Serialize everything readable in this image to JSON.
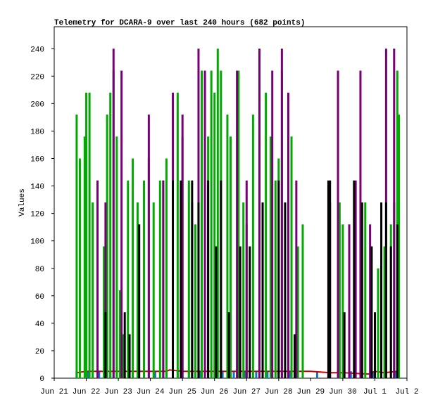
{
  "chart_data": {
    "type": "bar",
    "title": "Telemetry for DCARA-9 over last 240 hours (682 points)",
    "y_label": "Values",
    "xlim": [
      0,
      11
    ],
    "ylim": [
      0,
      256
    ],
    "xticks": [
      {
        "value": 0,
        "label": "Jun 21"
      },
      {
        "value": 1,
        "label": "Jun 22"
      },
      {
        "value": 2,
        "label": "Jun 23"
      },
      {
        "value": 3,
        "label": "Jun 24"
      },
      {
        "value": 4,
        "label": "Jun 25"
      },
      {
        "value": 5,
        "label": "Jun 26"
      },
      {
        "value": 6,
        "label": "Jun 27"
      },
      {
        "value": 7,
        "label": "Jun 28"
      },
      {
        "value": 8,
        "label": "Jun 29"
      },
      {
        "value": 9,
        "label": "Jun 30"
      },
      {
        "value": 10,
        "label": "Jul 1"
      },
      {
        "value": 11,
        "label": "Jul 2"
      }
    ],
    "yticks": [
      0,
      20,
      40,
      60,
      80,
      100,
      120,
      140,
      160,
      180,
      200,
      220,
      240
    ],
    "series": [
      {
        "color": "#1a6fd6",
        "style": "bar",
        "x": [
          0.7,
          1.05,
          1.4,
          1.75,
          2.1,
          2.45,
          2.8,
          3.15,
          3.5,
          3.85,
          4.2,
          4.55,
          4.9,
          5.25,
          5.6,
          5.95,
          6.3,
          6.65,
          7.0,
          7.35,
          8.2,
          8.55,
          8.9,
          9.25,
          9.6,
          9.95,
          10.3,
          10.65
        ],
        "values": [
          5,
          5,
          5,
          5,
          5,
          5,
          5,
          5,
          5,
          5,
          5,
          5,
          5,
          5,
          5,
          5,
          5,
          5,
          5,
          5,
          5,
          5,
          5,
          5,
          5,
          5,
          5,
          5
        ]
      },
      {
        "color": "#cc0000",
        "style": "line",
        "x": [
          0.7,
          1,
          2,
          3,
          3.5,
          3.6,
          4,
          5,
          6,
          7,
          8,
          8.6,
          9,
          9.8,
          10,
          10.3,
          10.7
        ],
        "values": [
          4,
          5,
          5,
          5,
          5,
          6,
          5,
          5,
          5,
          5,
          5,
          4,
          4,
          3,
          5,
          4,
          5
        ]
      },
      {
        "color": "#00aa00",
        "style": "bar",
        "x": [
          0.7,
          0.8,
          0.95,
          1.0,
          1.1,
          1.2,
          1.35,
          1.55,
          1.65,
          1.75,
          1.85,
          1.95,
          2.05,
          2.15,
          2.3,
          2.45,
          2.6,
          2.8,
          2.95,
          3.1,
          3.3,
          3.4,
          3.5,
          3.7,
          3.85,
          4.0,
          4.2,
          4.4,
          4.6,
          4.8,
          4.9,
          5.0,
          5.1,
          5.2,
          5.4,
          5.5,
          5.75,
          5.9,
          6.0,
          6.2,
          6.4,
          6.6,
          6.75,
          6.9,
          7.0,
          7.1,
          7.3,
          7.4,
          7.6,
          7.75,
          8.9,
          9.0,
          9.6,
          9.7,
          10.1,
          10.3,
          10.5,
          10.6,
          10.7,
          10.75
        ],
        "values": [
          192,
          160,
          176,
          208,
          208,
          128,
          144,
          96,
          192,
          208,
          224,
          176,
          64,
          32,
          144,
          160,
          128,
          144,
          160,
          128,
          144,
          144,
          160,
          144,
          208,
          176,
          144,
          112,
          224,
          176,
          224,
          208,
          240,
          224,
          192,
          176,
          224,
          128,
          112,
          192,
          176,
          208,
          176,
          144,
          160,
          224,
          192,
          176,
          96,
          112,
          128,
          112,
          128,
          128,
          80,
          96,
          112,
          128,
          224,
          192
        ]
      },
      {
        "color": "#770077",
        "style": "bar",
        "x": [
          1.35,
          1.6,
          1.85,
          2.1,
          2.95,
          3.4,
          3.7,
          4.0,
          4.3,
          4.5,
          4.7,
          5.7,
          6.0,
          6.4,
          6.8,
          7.1,
          7.3,
          7.55,
          8.6,
          8.85,
          9.2,
          9.4,
          9.55,
          9.85,
          10.35,
          10.6
        ],
        "values": [
          144,
          128,
          240,
          224,
          192,
          144,
          208,
          192,
          128,
          240,
          224,
          224,
          144,
          240,
          224,
          240,
          208,
          144,
          128,
          224,
          112,
          144,
          224,
          112,
          240,
          240
        ]
      },
      {
        "color": "#000000",
        "style": "bar",
        "x": [
          1.6,
          2.2,
          2.35,
          2.65,
          3.7,
          3.95,
          4.3,
          4.5,
          4.8,
          5.05,
          5.2,
          5.45,
          5.8,
          6.1,
          6.5,
          7.0,
          7.2,
          7.5,
          8.55,
          8.6,
          9.05,
          9.35,
          9.6,
          9.9,
          10.0,
          10.2,
          10.35,
          10.5,
          10.7
        ],
        "values": [
          48,
          48,
          32,
          112,
          144,
          144,
          144,
          128,
          144,
          96,
          144,
          48,
          96,
          96,
          128,
          144,
          128,
          32,
          144,
          144,
          48,
          144,
          128,
          96,
          48,
          128,
          128,
          96,
          112
        ]
      }
    ]
  }
}
